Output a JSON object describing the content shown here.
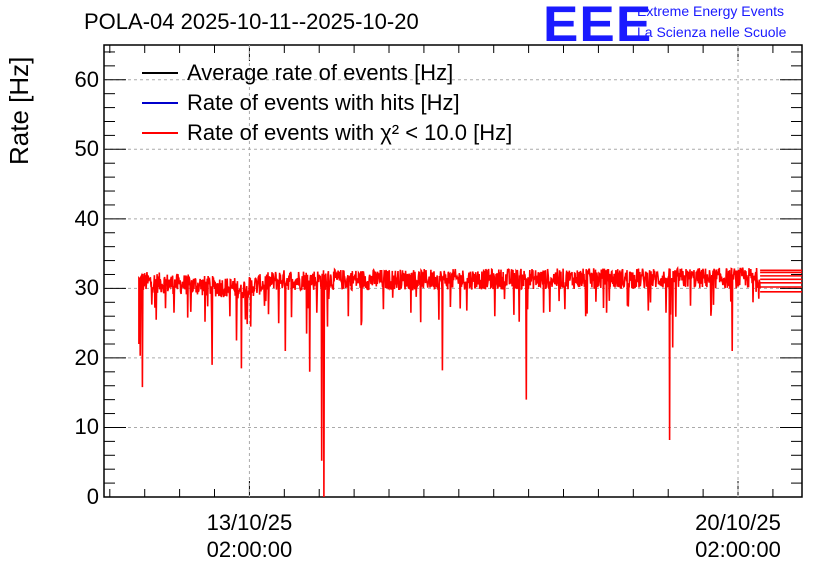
{
  "header": {
    "title": "POLA-04 2025-10-11--2025-10-20"
  },
  "logo": {
    "mark": "EEE",
    "line1": "Extreme Energy Events",
    "line2": "La Scienza nelle Scuole",
    "color": "#1a1aff"
  },
  "chart_data": {
    "type": "line",
    "title": "POLA-04 2025-10-11--2025-10-20",
    "xlabel": "",
    "ylabel": "Rate [Hz]",
    "ylim": [
      0,
      65
    ],
    "xlim_days": [
      0,
      10
    ],
    "x_unit": "days since 2025-10-11 00:00",
    "grid": true,
    "legend_position": "top-left",
    "yticks": [
      "0",
      "10",
      "20",
      "30",
      "40",
      "50",
      "60"
    ],
    "xticks": [
      {
        "pos": 2.0833,
        "label_date": "13/10/25",
        "label_time": "02:00:00"
      },
      {
        "pos": 9.0833,
        "label_date": "20/10/25",
        "label_time": "02:00:00"
      }
    ],
    "series": [
      {
        "name": "Average rate of events [Hz]",
        "color": "#000000"
      },
      {
        "name": "Rate of events with hits [Hz]",
        "color": "#0000cc"
      },
      {
        "name": "Rate of events with χ² < 10.0 [Hz]",
        "color": "#ff0000",
        "start": 0.5,
        "end": 9.4,
        "baseline_segments": [
          [
            0.5,
            31.0
          ],
          [
            2.0,
            30.0
          ],
          [
            2.5,
            31.2
          ],
          [
            5.0,
            31.3
          ],
          [
            9.4,
            31.5
          ]
        ],
        "noise_amplitude": 1.5,
        "dips": [
          {
            "x": 0.52,
            "y": 20.3
          },
          {
            "x": 0.55,
            "y": 15.8
          },
          {
            "x": 0.75,
            "y": 25.5
          },
          {
            "x": 1.0,
            "y": 26.5
          },
          {
            "x": 1.2,
            "y": 25.8
          },
          {
            "x": 1.45,
            "y": 25.2
          },
          {
            "x": 1.55,
            "y": 19.0
          },
          {
            "x": 1.9,
            "y": 22.5
          },
          {
            "x": 1.97,
            "y": 18.5
          },
          {
            "x": 2.1,
            "y": 24.5
          },
          {
            "x": 2.3,
            "y": 27.5
          },
          {
            "x": 2.5,
            "y": 25.0
          },
          {
            "x": 2.6,
            "y": 21.0
          },
          {
            "x": 2.9,
            "y": 23.5
          },
          {
            "x": 2.95,
            "y": 18.0
          },
          {
            "x": 3.05,
            "y": 26.5
          },
          {
            "x": 3.12,
            "y": 5.2
          },
          {
            "x": 3.15,
            "y": 0.0
          },
          {
            "x": 3.2,
            "y": 24.5
          },
          {
            "x": 3.5,
            "y": 26.0
          },
          {
            "x": 4.0,
            "y": 27.0
          },
          {
            "x": 4.4,
            "y": 26.5
          },
          {
            "x": 4.8,
            "y": 25.5
          },
          {
            "x": 4.85,
            "y": 18.2
          },
          {
            "x": 5.2,
            "y": 26.8
          },
          {
            "x": 5.6,
            "y": 26.0
          },
          {
            "x": 5.95,
            "y": 25.2
          },
          {
            "x": 6.05,
            "y": 14.0
          },
          {
            "x": 6.3,
            "y": 26.5
          },
          {
            "x": 6.6,
            "y": 27.0
          },
          {
            "x": 6.9,
            "y": 26.0
          },
          {
            "x": 7.2,
            "y": 26.5
          },
          {
            "x": 7.5,
            "y": 27.5
          },
          {
            "x": 7.8,
            "y": 26.8
          },
          {
            "x": 8.05,
            "y": 26.5
          },
          {
            "x": 8.1,
            "y": 8.2
          },
          {
            "x": 8.15,
            "y": 21.5
          },
          {
            "x": 8.4,
            "y": 27.5
          },
          {
            "x": 8.7,
            "y": 27.0
          },
          {
            "x": 9.0,
            "y": 21.0
          },
          {
            "x": 9.3,
            "y": 28.0
          }
        ],
        "tail_levels": [
          29.5,
          30.2,
          30.8,
          31.3,
          31.8,
          32.3,
          32.6
        ]
      }
    ]
  }
}
